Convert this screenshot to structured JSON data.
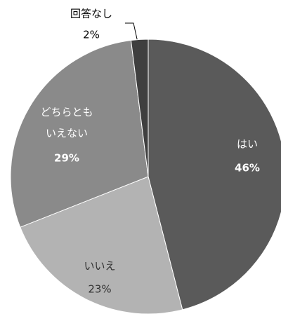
{
  "chart_data": {
    "type": "pie",
    "categories": [
      "はい",
      "いいえ",
      "どちらとも\nいえない",
      "回答なし"
    ],
    "values": [
      46,
      23,
      29,
      2
    ],
    "value_labels": [
      "46%",
      "23%",
      "29%",
      "2%"
    ],
    "colors": [
      "#5a5a5a",
      "#b3b3b3",
      "#8a8a8a",
      "#3f3f3f"
    ]
  }
}
